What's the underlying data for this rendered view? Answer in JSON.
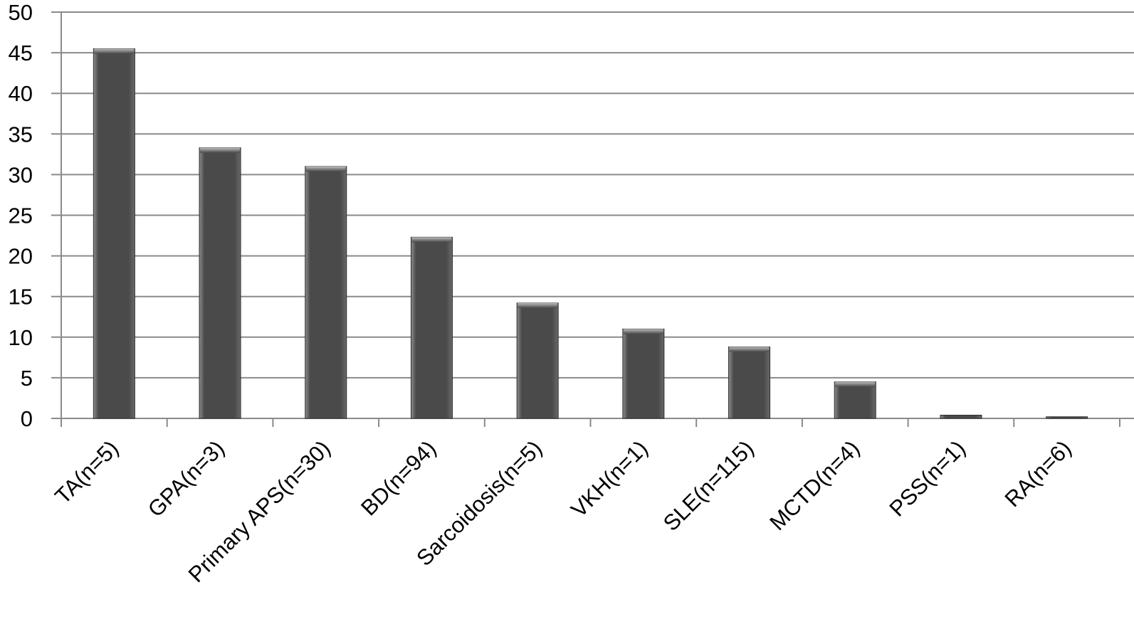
{
  "chart_data": {
    "type": "bar",
    "title": "",
    "xlabel": "",
    "ylabel": "",
    "ylim": [
      0,
      50
    ],
    "yticks": [
      0,
      5,
      10,
      15,
      20,
      25,
      30,
      35,
      40,
      45,
      50
    ],
    "grid": true,
    "legend": "none",
    "categories": [
      "TA(n=5)",
      "GPA(n=3)",
      "Primary APS(n=30)",
      "BD(n=94)",
      "Sarcoidosis(n=5)",
      "VKH(n=1)",
      "SLE(n=115)",
      "MCTD(n=4)",
      "PSS(n=1)",
      "RA(n=6)"
    ],
    "values": [
      45.5,
      33.3,
      31,
      22.3,
      14.2,
      11,
      8.8,
      4.5,
      0.4,
      0.2
    ],
    "colors": {
      "bar": "#4a4a4a",
      "bar_highlight": "#8e8e8e",
      "grid": "#8a8a8a",
      "axis": "#8a8a8a"
    }
  }
}
